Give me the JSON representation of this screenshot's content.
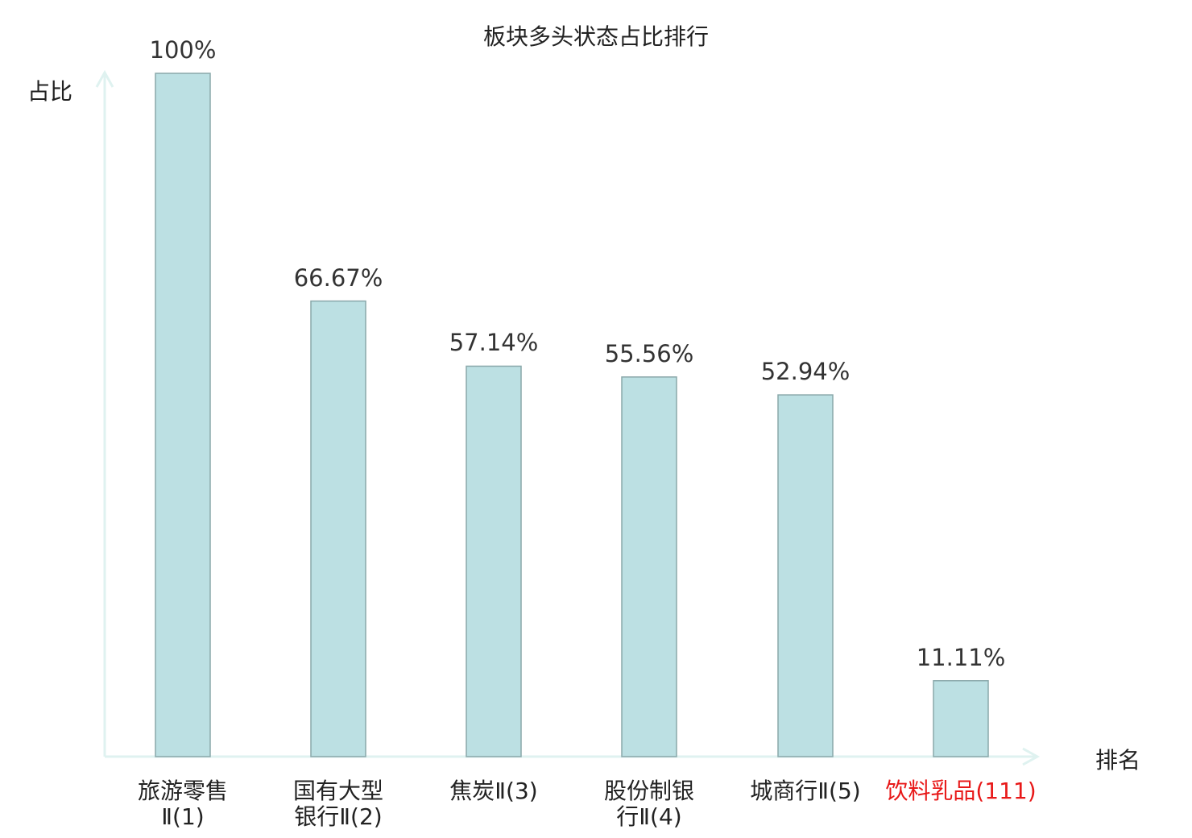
{
  "chart_data": {
    "type": "bar",
    "title": "板块多头状态占比排行",
    "ylabel": "占比",
    "xlabel": "排名",
    "ylim": [
      0,
      100
    ],
    "grid": false,
    "categories": [
      {
        "lines": [
          "旅游零售",
          "Ⅱ(1)"
        ],
        "highlight": false
      },
      {
        "lines": [
          "国有大型",
          "银行Ⅱ(2)"
        ],
        "highlight": false
      },
      {
        "lines": [
          "焦炭Ⅱ(3)"
        ],
        "highlight": false
      },
      {
        "lines": [
          "股份制银",
          "行Ⅱ(4)"
        ],
        "highlight": false
      },
      {
        "lines": [
          "城商行Ⅱ(5)"
        ],
        "highlight": false
      },
      {
        "lines": [
          "饮料乳品(111)"
        ],
        "highlight": true
      }
    ],
    "values": [
      100,
      66.67,
      57.14,
      55.56,
      52.94,
      11.11
    ],
    "value_labels": [
      "100%",
      "66.67%",
      "57.14%",
      "55.56%",
      "52.94%",
      "11.11%"
    ],
    "colors": {
      "bar_fill": "#bce0e3",
      "bar_stroke": "#8aa8aa",
      "axis": "#dff2f0",
      "highlight": "#e81818"
    }
  }
}
